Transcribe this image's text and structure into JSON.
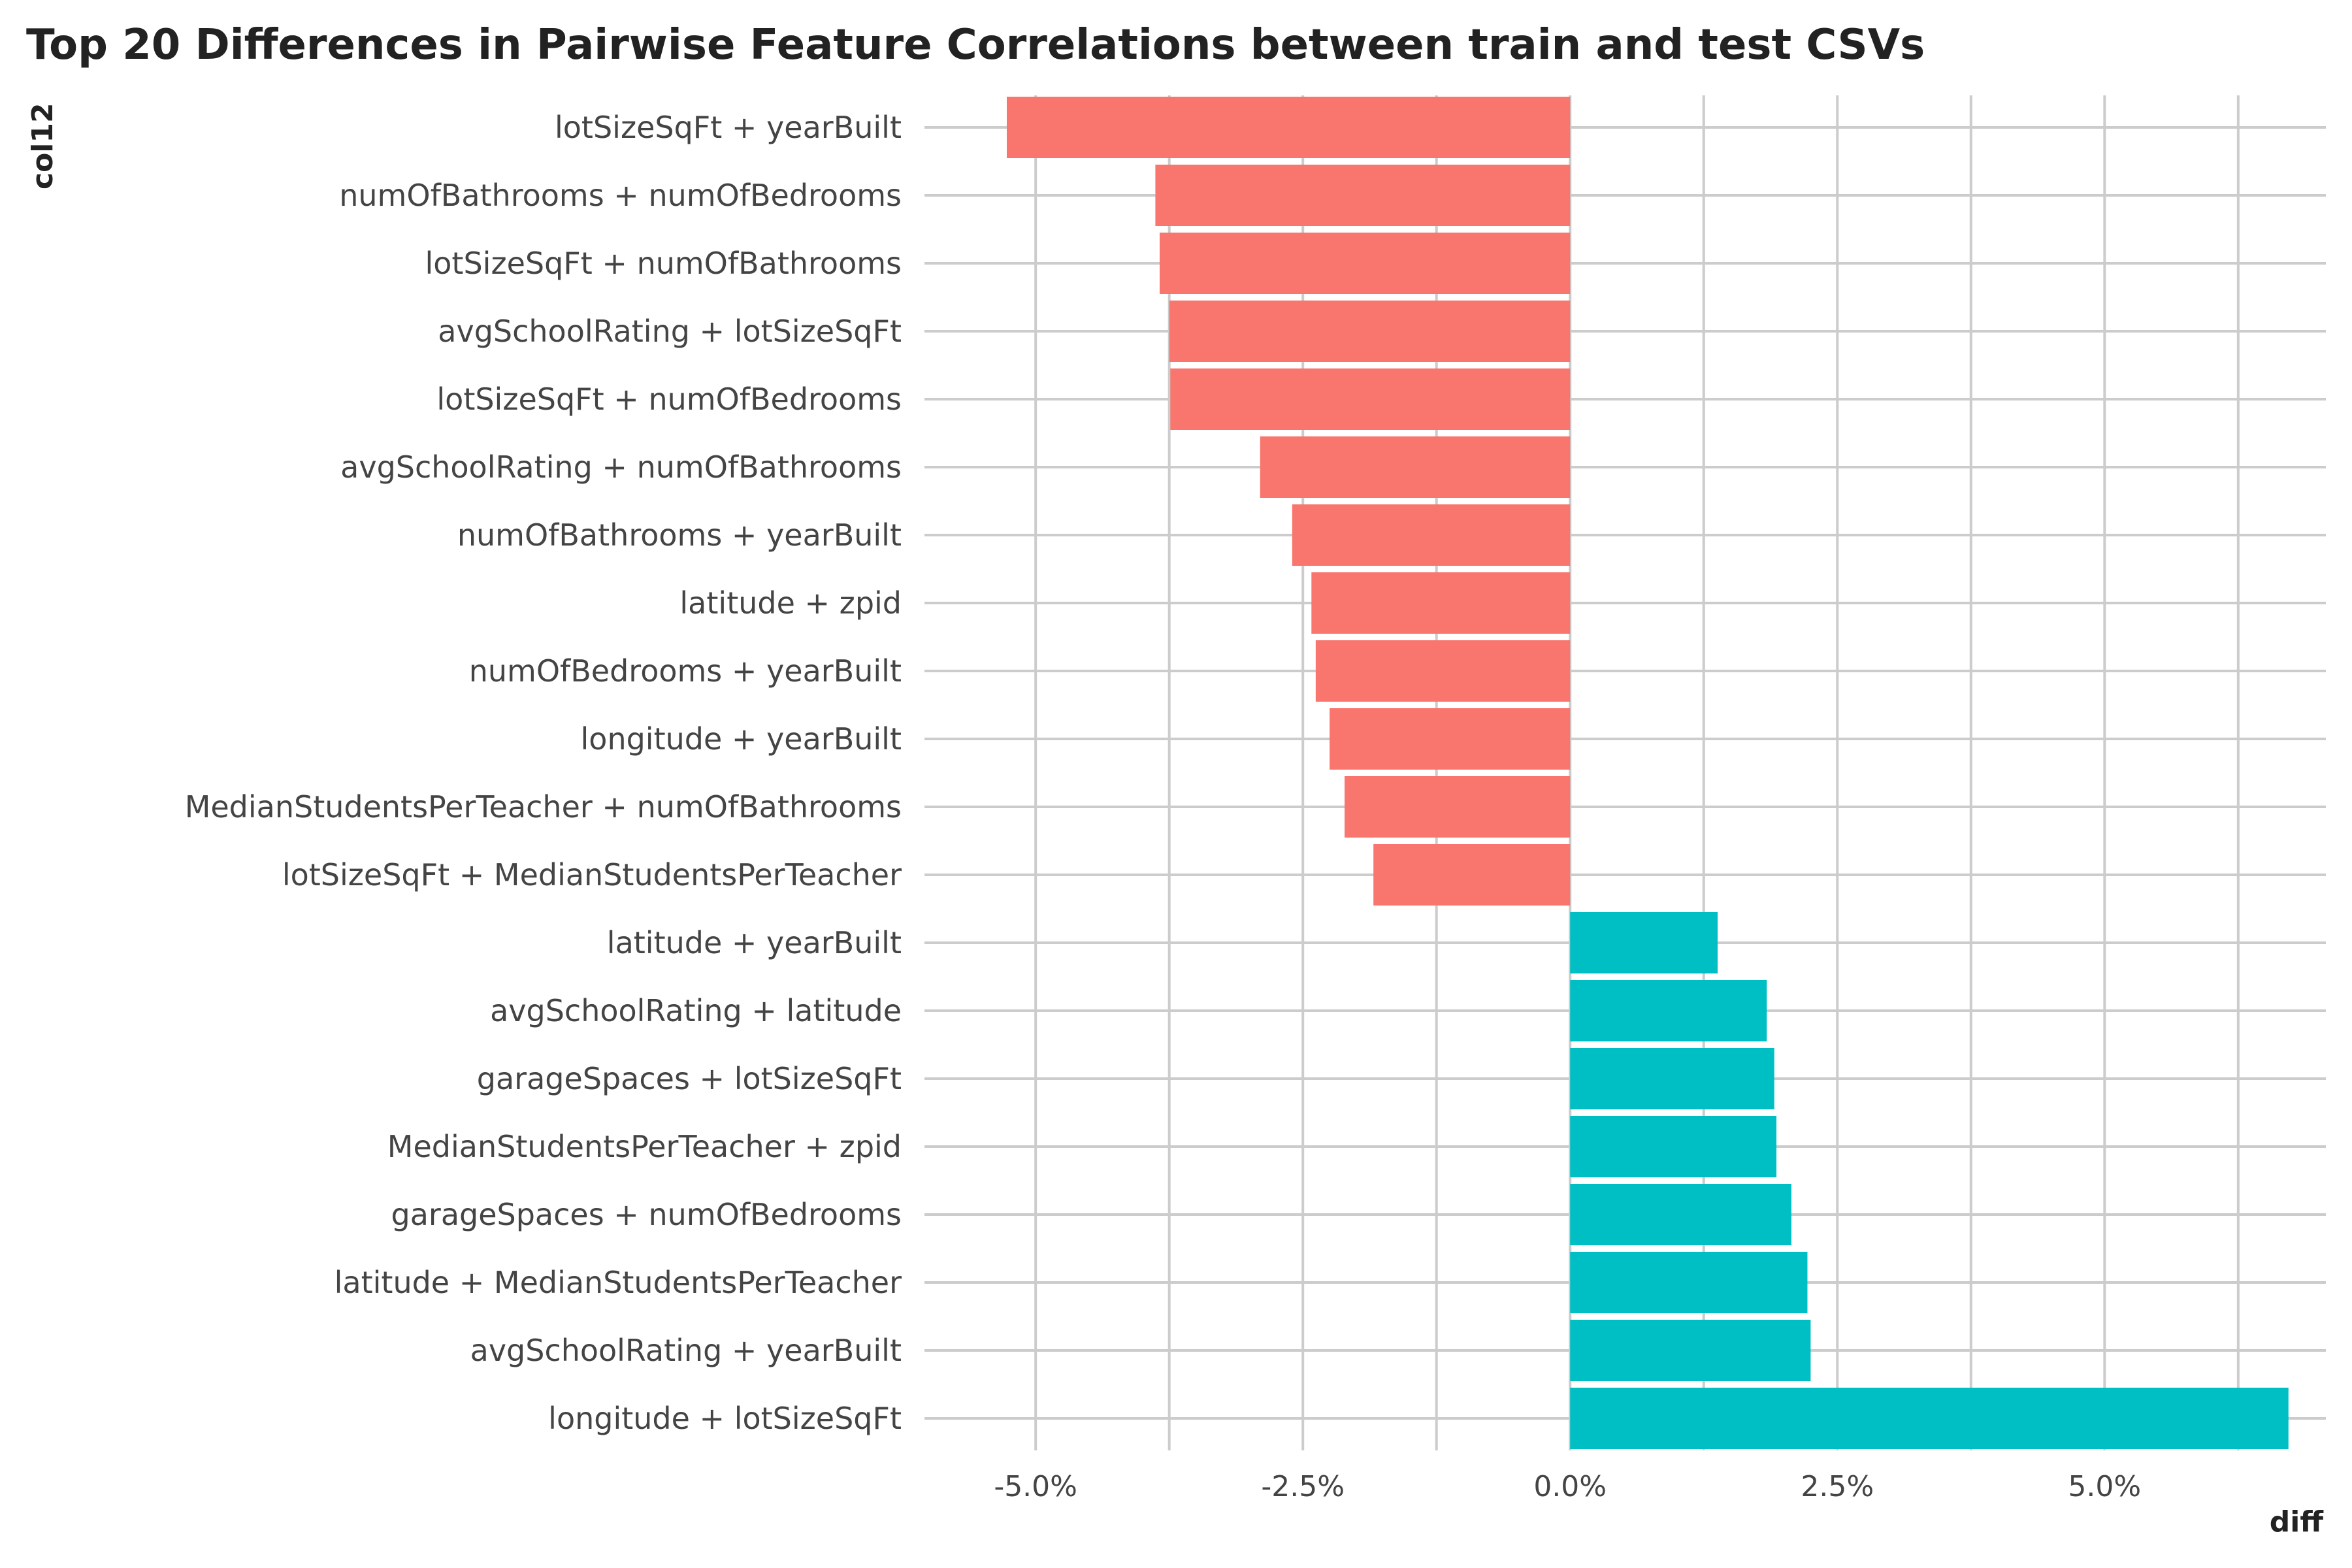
{
  "chart_data": {
    "type": "bar",
    "orientation": "horizontal",
    "title": "Top 20 Differences in Pairwise Feature Correlations between train and test CSVs",
    "xlabel": "diff",
    "ylabel": "col12",
    "categories": [
      "lotSizeSqFt + yearBuilt",
      "numOfBathrooms + numOfBedrooms",
      "lotSizeSqFt + numOfBathrooms",
      "avgSchoolRating + lotSizeSqFt",
      "lotSizeSqFt + numOfBedrooms",
      "avgSchoolRating + numOfBathrooms",
      "numOfBathrooms + yearBuilt",
      "latitude + zpid",
      "numOfBedrooms + yearBuilt",
      "longitude + yearBuilt",
      "MedianStudentsPerTeacher + numOfBathrooms",
      "lotSizeSqFt + MedianStudentsPerTeacher",
      "latitude + yearBuilt",
      "avgSchoolRating + latitude",
      "garageSpaces + lotSizeSqFt",
      "MedianStudentsPerTeacher + zpid",
      "garageSpaces + numOfBedrooms",
      "latitude + MedianStudentsPerTeacher",
      "avgSchoolRating + yearBuilt",
      "longitude + lotSizeSqFt"
    ],
    "values": [
      -5.27,
      -3.88,
      -3.84,
      -3.75,
      -3.74,
      -2.9,
      -2.6,
      -2.42,
      -2.38,
      -2.25,
      -2.11,
      -1.84,
      1.38,
      1.84,
      1.91,
      1.93,
      2.07,
      2.22,
      2.25,
      6.72
    ],
    "colors": {
      "negative": "#f8766d",
      "positive": "#00bfc4"
    },
    "xlim": [
      -6.04,
      7.07
    ],
    "x_ticks": [
      -5,
      -2.5,
      0,
      2.5,
      5
    ],
    "x_tick_labels": [
      "-5.0%",
      "-2.5%",
      "0.0%",
      "2.5%",
      "5.0%"
    ],
    "grid": true,
    "legend": "none"
  }
}
